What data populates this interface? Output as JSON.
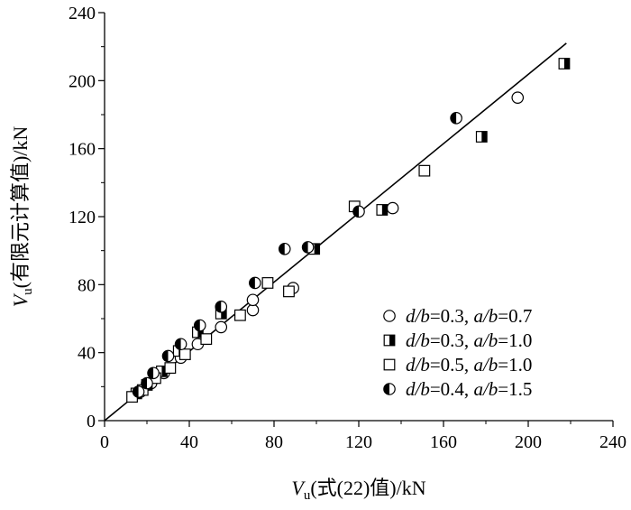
{
  "chart_data": {
    "type": "scatter",
    "xlabel": {
      "v": "V",
      "sub": "u",
      "rest": "(式(22)值)/kN"
    },
    "ylabel": {
      "v": "V",
      "sub": "u",
      "rest": "(有限元计算值)/kN"
    },
    "xlim": [
      0,
      240
    ],
    "ylim": [
      0,
      240
    ],
    "xticks": [
      "0",
      "40",
      "80",
      "120",
      "160",
      "200",
      "240"
    ],
    "yticks": [
      "0",
      "40",
      "80",
      "120",
      "160",
      "200",
      "240"
    ],
    "grid": false,
    "legend_position": "bottom-right",
    "reference_line": {
      "x": [
        0,
        218
      ],
      "y": [
        0,
        222
      ]
    },
    "series": [
      {
        "name_parts": [
          {
            "t": "d/b",
            "i": true
          },
          {
            "t": "=0.3, ",
            "i": false
          },
          {
            "t": "a/b",
            "i": true
          },
          {
            "t": "=0.7",
            "i": false
          }
        ],
        "marker": "open-circle",
        "points": [
          [
            17,
            17
          ],
          [
            22,
            22
          ],
          [
            28,
            28
          ],
          [
            36,
            37
          ],
          [
            44,
            45
          ],
          [
            55,
            55
          ],
          [
            70,
            65
          ],
          [
            70,
            71
          ],
          [
            89,
            78
          ],
          [
            136,
            125
          ],
          [
            195,
            190
          ]
        ]
      },
      {
        "name_parts": [
          {
            "t": "d/b",
            "i": true
          },
          {
            "t": "=0.3, ",
            "i": false
          },
          {
            "t": "a/b",
            "i": true
          },
          {
            "t": "=1.0",
            "i": false
          }
        ],
        "marker": "half-filled-square",
        "points": [
          [
            15,
            16
          ],
          [
            20,
            21
          ],
          [
            27,
            29
          ],
          [
            35,
            41
          ],
          [
            44,
            52
          ],
          [
            55,
            63
          ],
          [
            99,
            101
          ],
          [
            131,
            124
          ],
          [
            178,
            167
          ],
          [
            217,
            210
          ]
        ]
      },
      {
        "name_parts": [
          {
            "t": "d/b",
            "i": true
          },
          {
            "t": "=0.5, ",
            "i": false
          },
          {
            "t": "a/b",
            "i": true
          },
          {
            "t": "=1.0",
            "i": false
          }
        ],
        "marker": "open-square",
        "points": [
          [
            13,
            14
          ],
          [
            18,
            18
          ],
          [
            24,
            25
          ],
          [
            31,
            31
          ],
          [
            38,
            39
          ],
          [
            48,
            48
          ],
          [
            64,
            62
          ],
          [
            77,
            81
          ],
          [
            87,
            76
          ],
          [
            118,
            126
          ],
          [
            151,
            147
          ]
        ]
      },
      {
        "name_parts": [
          {
            "t": "d/b",
            "i": true
          },
          {
            "t": "=0.4, ",
            "i": false
          },
          {
            "t": "a/b",
            "i": true
          },
          {
            "t": "=1.5",
            "i": false
          }
        ],
        "marker": "half-filled-circle",
        "points": [
          [
            16,
            17
          ],
          [
            20,
            22
          ],
          [
            23,
            28
          ],
          [
            30,
            38
          ],
          [
            36,
            45
          ],
          [
            45,
            56
          ],
          [
            55,
            67
          ],
          [
            71,
            81
          ],
          [
            85,
            101
          ],
          [
            96,
            102
          ],
          [
            120,
            123
          ],
          [
            166,
            178
          ]
        ]
      }
    ]
  }
}
